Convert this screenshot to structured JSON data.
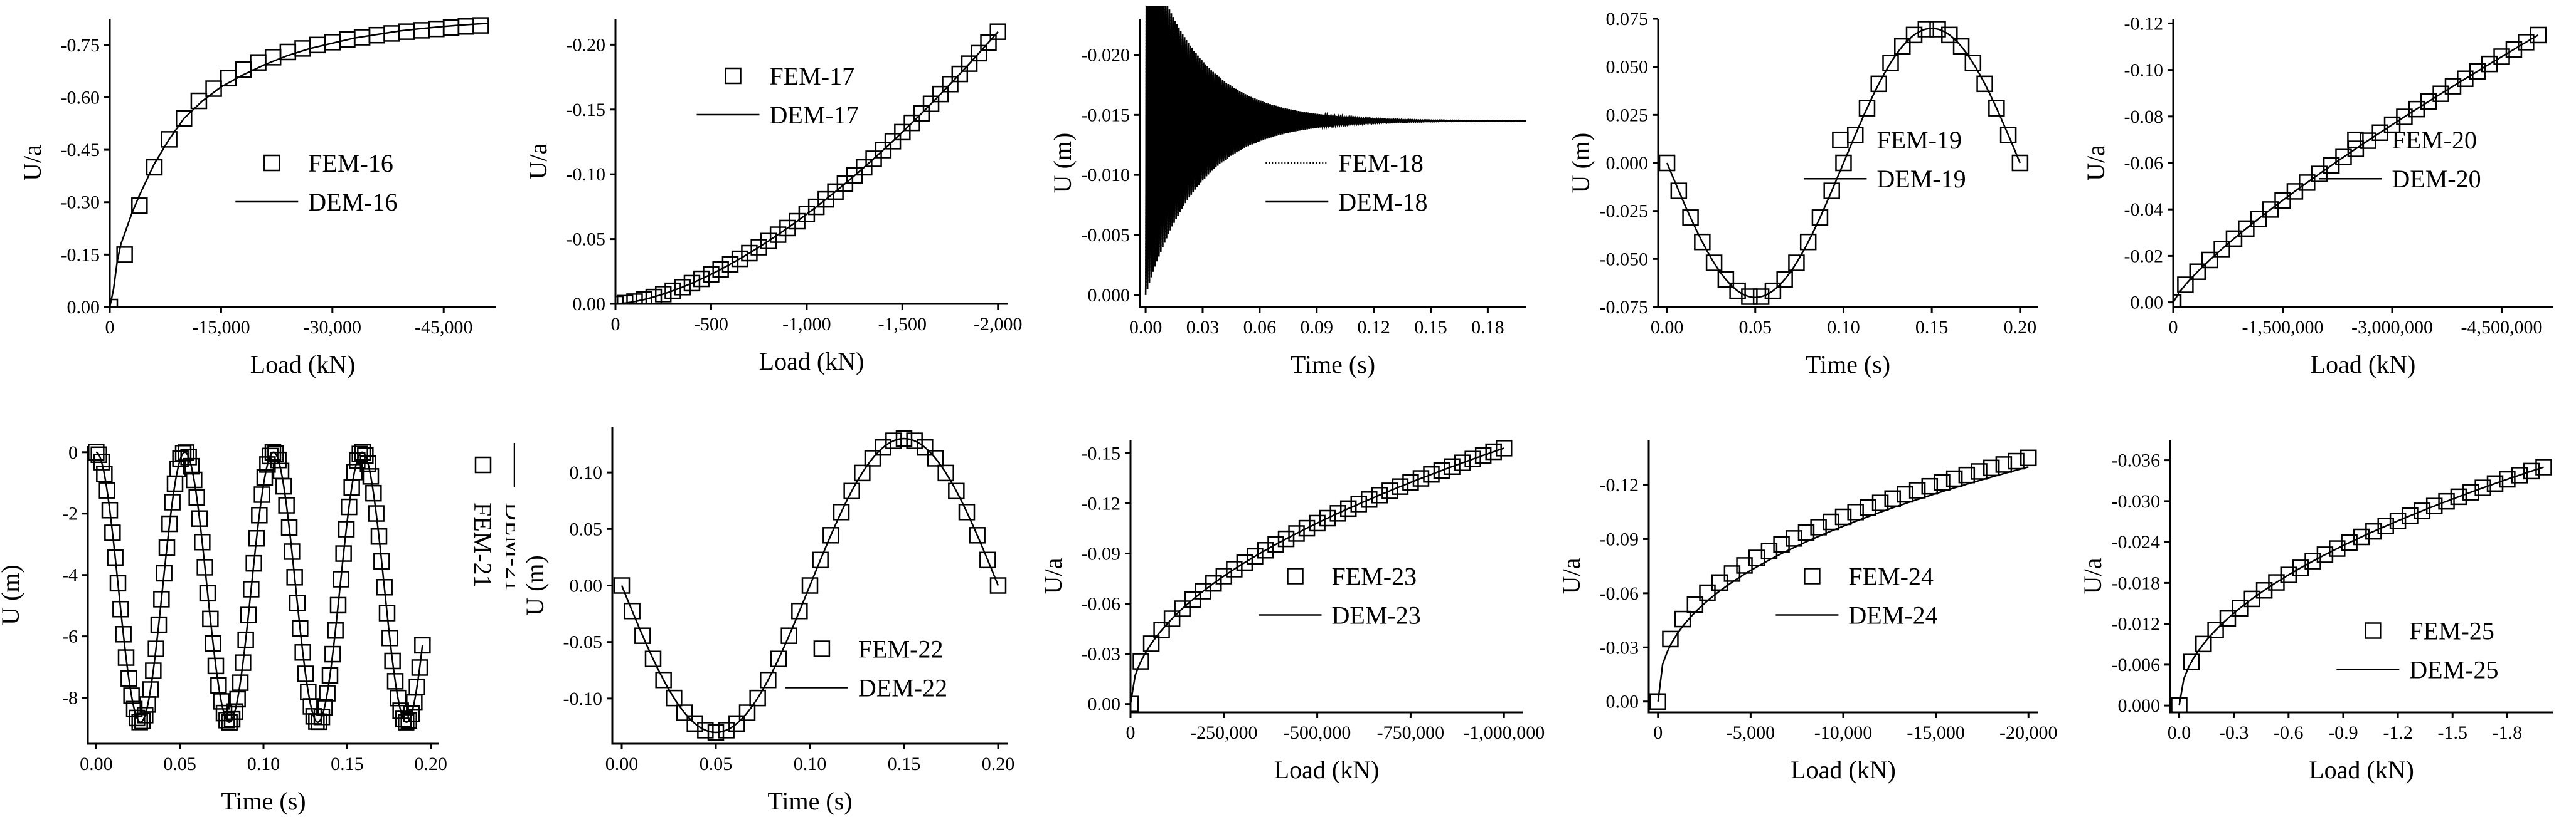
{
  "figure": {
    "chart_data": [
      {
        "id": "p16",
        "type": "line",
        "xlabel": "Load (kN)",
        "ylabel": "U/a",
        "xlim": [
          0,
          -52000
        ],
        "ylim": [
          0,
          -0.825
        ],
        "xticks": [
          0,
          -15000,
          -30000,
          -45000
        ],
        "xtick_labels": [
          "0",
          "-15,000",
          "-30,000",
          "-45,000"
        ],
        "yticks": [
          0,
          -0.15,
          -0.3,
          -0.45,
          -0.6,
          -0.75
        ],
        "ytick_labels": [
          "0.00",
          "-0.15",
          "-0.30",
          "-0.45",
          "-0.60",
          "-0.75"
        ],
        "legend": [
          {
            "label": "FEM-16",
            "style": "square"
          },
          {
            "label": "DEM-16",
            "style": "solid"
          }
        ],
        "legend_position": "center",
        "series": [
          {
            "name": "DEM-16",
            "style": "solid",
            "x": [
              0,
              -500,
              -1000,
              -1500,
              -2000,
              -3000,
              -4000,
              -6000,
              -8000,
              -10000,
              -12500,
              -15000,
              -18000,
              -21000,
              -24000,
              -27000,
              -30000,
              -33000,
              -36000,
              -39000,
              -42000,
              -45000,
              -48000,
              -51000
            ],
            "y": [
              0,
              -0.05,
              -0.13,
              -0.18,
              -0.21,
              -0.27,
              -0.32,
              -0.41,
              -0.48,
              -0.54,
              -0.59,
              -0.63,
              -0.665,
              -0.695,
              -0.72,
              -0.74,
              -0.755,
              -0.77,
              -0.78,
              -0.79,
              -0.797,
              -0.803,
              -0.808,
              -0.812
            ]
          },
          {
            "name": "FEM-16",
            "style": "square",
            "x": [
              0,
              -2000,
              -4000,
              -6000,
              -8000,
              -10000,
              -12000,
              -14000,
              -16000,
              -18000,
              -20000,
              -22000,
              -24000,
              -26000,
              -28000,
              -30000,
              -32000,
              -34000,
              -36000,
              -38000,
              -40000,
              -42000,
              -44000,
              -46000,
              -48000,
              -50000
            ],
            "y": [
              0,
              -0.15,
              -0.29,
              -0.4,
              -0.48,
              -0.54,
              -0.59,
              -0.625,
              -0.655,
              -0.68,
              -0.7,
              -0.715,
              -0.73,
              -0.74,
              -0.75,
              -0.758,
              -0.766,
              -0.772,
              -0.778,
              -0.783,
              -0.788,
              -0.792,
              -0.796,
              -0.8,
              -0.803,
              -0.806
            ]
          }
        ]
      },
      {
        "id": "p17",
        "type": "line",
        "xlabel": "Load (kN)",
        "ylabel": "U/a",
        "xlim": [
          0,
          -2050
        ],
        "ylim": [
          0,
          -0.22
        ],
        "xticks": [
          0,
          -500,
          -1000,
          -1500,
          -2000
        ],
        "xtick_labels": [
          "0",
          "-500",
          "-1,000",
          "-1,500",
          "-2,000"
        ],
        "yticks": [
          0,
          -0.05,
          -0.1,
          -0.15,
          -0.2
        ],
        "ytick_labels": [
          "0.00",
          "-0.05",
          "-0.10",
          "-0.15",
          "-0.20"
        ],
        "legend": [
          {
            "label": "FEM-17",
            "style": "square"
          },
          {
            "label": "DEM-17",
            "style": "solid"
          }
        ],
        "legend_position": "top-left",
        "series": [
          {
            "name": "DEM-17",
            "style": "solid",
            "fn": "power",
            "a": -0.21,
            "p": 1.6,
            "xmax": -2000,
            "n": 40
          },
          {
            "name": "FEM-17",
            "style": "square",
            "fn": "power",
            "a": -0.21,
            "p": 1.6,
            "xmax": -2000,
            "n": 40
          }
        ]
      },
      {
        "id": "p18",
        "type": "line",
        "xlabel": "Time (s)",
        "ylabel": "U (m)",
        "xlim": [
          -0.003,
          0.2
        ],
        "ylim": [
          0.001,
          -0.023
        ],
        "xticks": [
          0,
          0.03,
          0.06,
          0.09,
          0.12,
          0.15,
          0.18
        ],
        "xtick_labels": [
          "0.00",
          "0.03",
          "0.06",
          "0.09",
          "0.12",
          "0.15",
          "0.18"
        ],
        "yticks": [
          0,
          -0.005,
          -0.01,
          -0.015,
          -0.02
        ],
        "ytick_labels": [
          "0.000",
          "-0.005",
          "-0.010",
          "-0.015",
          "-0.020"
        ],
        "legend": [
          {
            "label": "FEM-18",
            "style": "dotted"
          },
          {
            "label": "DEM-18",
            "style": "solid"
          }
        ],
        "legend_position": "center",
        "series": [
          {
            "name": "DEM-18",
            "style": "solid",
            "fn": "damped",
            "mean": -0.0145,
            "amp": 0.0145,
            "tau": 0.028,
            "freq": 1000,
            "tmax": 0.2
          },
          {
            "name": "FEM-18",
            "style": "dotted",
            "fn": "damped",
            "mean": -0.0145,
            "amp": 0.0145,
            "tau": 0.028,
            "freq": 1000,
            "tmax": 0.2
          }
        ]
      },
      {
        "id": "p19",
        "type": "line",
        "xlabel": "Time (s)",
        "ylabel": "U (m)",
        "xlim": [
          -0.005,
          0.21
        ],
        "ylim": [
          -0.075,
          0.075
        ],
        "xticks": [
          0,
          0.05,
          0.1,
          0.15,
          0.2
        ],
        "xtick_labels": [
          "0.00",
          "0.05",
          "0.10",
          "0.15",
          "0.20"
        ],
        "yticks": [
          -0.075,
          -0.05,
          -0.025,
          0,
          0.025,
          0.05,
          0.075
        ],
        "ytick_labels": [
          "-0.075",
          "-0.050",
          "-0.025",
          "0.000",
          "0.025",
          "0.050",
          "0.075"
        ],
        "legend": [
          {
            "label": "FEM-19",
            "style": "square"
          },
          {
            "label": "DEM-19",
            "style": "solid"
          }
        ],
        "legend_position": "center-right",
        "series": [
          {
            "name": "DEM-19",
            "style": "solid",
            "fn": "sine",
            "amp": 0.07,
            "period": 0.2,
            "tmax": 0.2,
            "n": 200
          },
          {
            "name": "FEM-19",
            "style": "square",
            "fn": "sine",
            "amp": 0.07,
            "period": 0.2,
            "tmax": 0.2,
            "n": 30
          }
        ]
      },
      {
        "id": "p20",
        "type": "line",
        "xlabel": "Load (kN)",
        "ylabel": "U/a",
        "xlim": [
          0,
          -5200000
        ],
        "ylim": [
          0.002,
          -0.122
        ],
        "xticks": [
          0,
          -1500000,
          -3000000,
          -4500000
        ],
        "xtick_labels": [
          "0",
          "-1,500,000",
          "-3,000,000",
          "-4,500,000"
        ],
        "yticks": [
          0,
          -0.02,
          -0.04,
          -0.06,
          -0.08,
          -0.1,
          -0.12
        ],
        "ytick_labels": [
          "0.00",
          "-0.02",
          "-0.04",
          "-0.06",
          "-0.08",
          "-0.10",
          "-0.12"
        ],
        "legend": [
          {
            "label": "FEM-20",
            "style": "square"
          },
          {
            "label": "DEM-20",
            "style": "solid"
          }
        ],
        "legend_position": "center-right",
        "series": [
          {
            "name": "DEM-20",
            "style": "solid",
            "fn": "power",
            "a": -0.115,
            "p": 0.8,
            "xmax": -5000000,
            "n": 60
          },
          {
            "name": "FEM-20",
            "style": "square",
            "fn": "power",
            "a": -0.115,
            "p": 0.8,
            "xmax": -5000000,
            "n": 30
          }
        ]
      },
      {
        "id": "p21",
        "type": "line",
        "xlabel": "Time (s)",
        "ylabel": "U (m)",
        "xlim": [
          -0.005,
          0.205
        ],
        "ylim": [
          -9.5,
          0.2
        ],
        "xticks": [
          0,
          0.05,
          0.1,
          0.15,
          0.2
        ],
        "xtick_labels": [
          "0.00",
          "0.05",
          "0.10",
          "0.15",
          "0.20"
        ],
        "yticks": [
          0,
          -2,
          -4,
          -6,
          -8
        ],
        "ytick_labels": [
          "0",
          "-2",
          "-4",
          "-6",
          "-8"
        ],
        "legend": [
          {
            "label": "FEM-21",
            "style": "square"
          },
          {
            "label": "DEM-21",
            "style": "solid"
          }
        ],
        "legend_position": "right-rotated",
        "series": [
          {
            "name": "DEM-21",
            "style": "solid",
            "fn": "cosine",
            "amp": 8.8,
            "period": 0.053,
            "tmax": 0.195,
            "n": 400
          },
          {
            "name": "FEM-21",
            "style": "square",
            "fn": "cosine",
            "amp": 8.8,
            "period": 0.053,
            "tmax": 0.195,
            "n": 120
          }
        ]
      },
      {
        "id": "p22",
        "type": "line",
        "xlabel": "Time (s)",
        "ylabel": "U (m)",
        "xlim": [
          -0.005,
          0.205
        ],
        "ylim": [
          -0.14,
          0.14
        ],
        "xticks": [
          0,
          0.05,
          0.1,
          0.15,
          0.2
        ],
        "xtick_labels": [
          "0.00",
          "0.05",
          "0.10",
          "0.15",
          "0.20"
        ],
        "yticks": [
          -0.1,
          -0.05,
          0,
          0.05,
          0.1
        ],
        "ytick_labels": [
          "-0.10",
          "-0.05",
          "0.00",
          "0.05",
          "0.10"
        ],
        "legend": [
          {
            "label": "FEM-22",
            "style": "square"
          },
          {
            "label": "DEM-22",
            "style": "solid"
          }
        ],
        "legend_position": "bottom-right",
        "series": [
          {
            "name": "DEM-22",
            "style": "solid",
            "fn": "sine",
            "amp": 0.13,
            "period": 0.2,
            "tmax": 0.2,
            "n": 200
          },
          {
            "name": "FEM-22",
            "style": "square",
            "fn": "sine",
            "amp": 0.13,
            "period": 0.2,
            "tmax": 0.2,
            "n": 36
          }
        ]
      },
      {
        "id": "p23",
        "type": "line",
        "xlabel": "Load (kN)",
        "ylabel": "U/a",
        "xlim": [
          0,
          -1050000
        ],
        "ylim": [
          0.005,
          -0.158
        ],
        "xticks": [
          0,
          -250000,
          -500000,
          -750000,
          -1000000
        ],
        "xtick_labels": [
          "0",
          "-250,000",
          "-500,000",
          "-750,000",
          "-1,000,000"
        ],
        "yticks": [
          0,
          -0.03,
          -0.06,
          -0.09,
          -0.12,
          -0.15
        ],
        "ytick_labels": [
          "0.00",
          "-0.03",
          "-0.06",
          "-0.09",
          "-0.12",
          "-0.15"
        ],
        "legend": [
          {
            "label": "FEM-23",
            "style": "square"
          },
          {
            "label": "DEM-23",
            "style": "solid"
          }
        ],
        "legend_position": "center",
        "series": [
          {
            "name": "DEM-23",
            "style": "solid",
            "fn": "power",
            "a": -0.153,
            "p": 0.5,
            "xmax": -1000000,
            "n": 80
          },
          {
            "name": "FEM-23",
            "style": "square",
            "fn": "power",
            "a": -0.153,
            "p": 0.5,
            "xmax": -1000000,
            "n": 36
          }
        ]
      },
      {
        "id": "p24",
        "type": "line",
        "xlabel": "Load (kN)",
        "ylabel": "U/a",
        "xlim": [
          500,
          -20500
        ],
        "ylim": [
          0.006,
          -0.145
        ],
        "xticks": [
          0,
          -5000,
          -10000,
          -15000,
          -20000
        ],
        "xtick_labels": [
          "0",
          "-5,000",
          "-10,000",
          "-15,000",
          "-20,000"
        ],
        "yticks": [
          0,
          -0.03,
          -0.06,
          -0.09,
          -0.12
        ],
        "ytick_labels": [
          "0.00",
          "-0.03",
          "-0.06",
          "-0.09",
          "-0.12"
        ],
        "legend": [
          {
            "label": "FEM-24",
            "style": "square"
          },
          {
            "label": "DEM-24",
            "style": "solid"
          }
        ],
        "legend_position": "center",
        "series": [
          {
            "name": "DEM-24",
            "style": "solid",
            "fn": "power",
            "a": -0.13,
            "p": 0.42,
            "xmax": -20000,
            "n": 80
          },
          {
            "name": "FEM-24",
            "style": "square",
            "fn": "power",
            "a": -0.135,
            "p": 0.4,
            "xmax": -20000,
            "n": 30
          }
        ]
      },
      {
        "id": "p25",
        "type": "line",
        "xlabel": "Load (kN)",
        "ylabel": "U/a",
        "xlim": [
          0.05,
          -2.05
        ],
        "ylim": [
          0.001,
          -0.039
        ],
        "xticks": [
          0,
          -0.3,
          -0.6,
          -0.9,
          -1.2,
          -1.5,
          -1.8
        ],
        "xtick_labels": [
          "0.0",
          "-0.3",
          "-0.6",
          "-0.9",
          "-1.2",
          "-1.5",
          "-1.8"
        ],
        "yticks": [
          0,
          -0.006,
          -0.012,
          -0.018,
          -0.024,
          -0.03,
          -0.036
        ],
        "ytick_labels": [
          "0.000",
          "-0.006",
          "-0.012",
          "-0.018",
          "-0.024",
          "-0.030",
          "-0.036"
        ],
        "legend": [
          {
            "label": "FEM-25",
            "style": "square"
          },
          {
            "label": "DEM-25",
            "style": "solid"
          }
        ],
        "legend_position": "bottom-right",
        "series": [
          {
            "name": "DEM-25",
            "style": "solid",
            "fn": "power",
            "a": -0.035,
            "p": 0.5,
            "xmax": -2.0,
            "n": 80
          },
          {
            "name": "FEM-25",
            "style": "square",
            "fn": "power",
            "a": -0.035,
            "p": 0.5,
            "xmax": -2.0,
            "n": 30
          }
        ]
      }
    ]
  }
}
